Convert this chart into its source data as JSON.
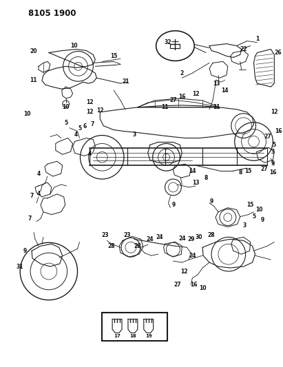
{
  "title": "8105 1900",
  "bg": "#ffffff",
  "lc": "#1a1a1a",
  "tc": "#111111",
  "fw": 4.11,
  "fh": 5.33,
  "dpi": 100
}
